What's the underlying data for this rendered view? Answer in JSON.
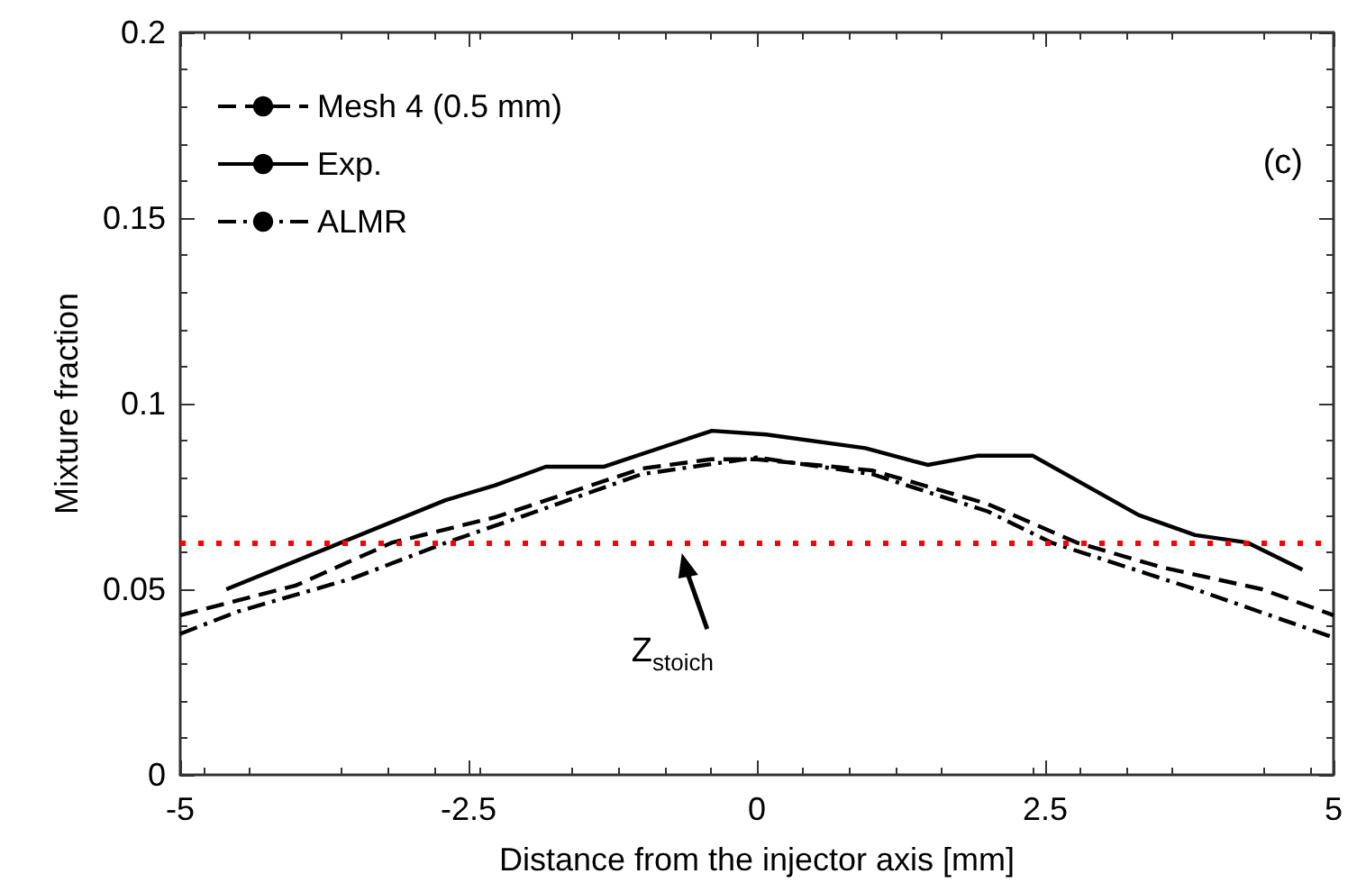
{
  "chart_data": {
    "type": "line",
    "xlabel": "Distance from the injector axis [mm]",
    "ylabel": "Mixture fraction",
    "xlim": [
      -5,
      5
    ],
    "xticks": [
      -5,
      -2.5,
      0,
      2.5,
      5
    ],
    "ylim": [
      0,
      0.2
    ],
    "yticks": [
      0,
      0.05,
      0.1,
      0.15,
      0.2
    ],
    "legend": "top left",
    "grid": false,
    "marker": "none",
    "series": [
      {
        "name": "Mesh 4 (0.5 mm)",
        "color": "#000000",
        "line_style": "dashed",
        "x": [
          -5,
          -4,
          -3.16,
          -2.27,
          -1,
          -0.4,
          0,
          1,
          2,
          2.77,
          3.5,
          4.38,
          5
        ],
        "values": [
          0.043,
          0.051,
          0.0626,
          0.0694,
          0.0825,
          0.085,
          0.085,
          0.082,
          0.073,
          0.0626,
          0.056,
          0.05,
          0.043
        ]
      },
      {
        "name": "Exp.",
        "color": "#000000",
        "line_style": "solid",
        "x": [
          -4.6,
          -2.7,
          -2.27,
          -1.83,
          -1.33,
          -0.39,
          0.08,
          0.94,
          1.48,
          1.92,
          2.39,
          3.31,
          3.8,
          4.25,
          4.73
        ],
        "values": [
          0.05,
          0.074,
          0.078,
          0.083,
          0.083,
          0.0927,
          0.0917,
          0.088,
          0.0835,
          0.086,
          0.086,
          0.07,
          0.0646,
          0.0626,
          0.0553
        ]
      },
      {
        "name": "ALMR",
        "color": "#000000",
        "line_style": "dashdot",
        "x": [
          -5,
          -4.5,
          -3.5,
          -2.69,
          -2,
          -1,
          0,
          1,
          2,
          2.55,
          3.8,
          5
        ],
        "values": [
          0.038,
          0.044,
          0.053,
          0.0626,
          0.07,
          0.081,
          0.0855,
          0.081,
          0.071,
          0.0626,
          0.05,
          0.037
        ]
      }
    ],
    "ref_lines": [
      {
        "axis": "y",
        "value": 0.0626,
        "label": null,
        "color": "#ff0000",
        "line_style": "dotted"
      }
    ],
    "annotations": [
      "Z$_{stoich}$",
      "(c)"
    ]
  }
}
